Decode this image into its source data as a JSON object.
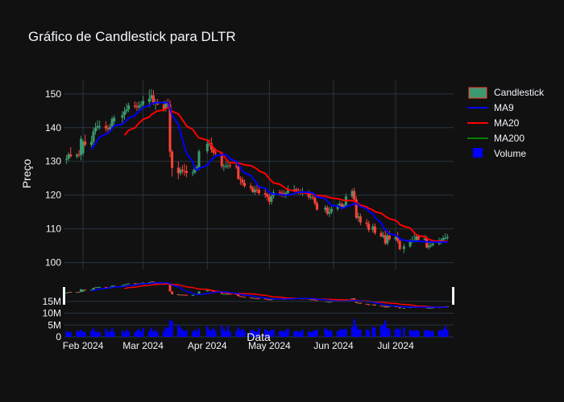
{
  "chart_data": {
    "type": "candlestick",
    "title": "Gráfico de Candlestick para DLTR",
    "xlabel": "Data",
    "ylabel": "Preço",
    "colors": {
      "background": "#111111",
      "grid": "#283442",
      "increasing": "#3d9970",
      "decreasing": "#ff4136",
      "ma9": "#0000ff",
      "ma20": "#ff0000",
      "ma200": "#008000",
      "volume": "#0000ff"
    },
    "legend": {
      "placement": "top-right",
      "entries": [
        "Candlestick",
        "MA9",
        "MA20",
        "MA200",
        "Volume"
      ]
    },
    "x_ticks": [
      {
        "date": "2024-02-01",
        "label": "Feb 2024"
      },
      {
        "date": "2024-03-01",
        "label": "Mar 2024"
      },
      {
        "date": "2024-04-01",
        "label": "Apr 2024"
      },
      {
        "date": "2024-05-01",
        "label": "May 2024"
      },
      {
        "date": "2024-06-01",
        "label": "Jun 2024"
      },
      {
        "date": "2024-07-01",
        "label": "Jul 2024"
      }
    ],
    "xlim": [
      "2024-01-23",
      "2024-07-29"
    ],
    "price_axis": {
      "ylim": [
        98,
        154
      ],
      "ticks": [
        100,
        110,
        120,
        130,
        140,
        150
      ]
    },
    "volume_axis": {
      "ylim": [
        0,
        18000000
      ],
      "ticks": [
        {
          "value": 0,
          "label": "0"
        },
        {
          "value": 5000000,
          "label": "5M"
        },
        {
          "value": 10000000,
          "label": "10M"
        },
        {
          "value": 15000000,
          "label": "15M"
        }
      ]
    },
    "series": {
      "dates": [
        "2024-01-24",
        "2024-01-25",
        "2024-01-26",
        "2024-01-29",
        "2024-01-30",
        "2024-01-31",
        "2024-02-01",
        "2024-02-02",
        "2024-02-05",
        "2024-02-06",
        "2024-02-07",
        "2024-02-08",
        "2024-02-09",
        "2024-02-12",
        "2024-02-13",
        "2024-02-14",
        "2024-02-15",
        "2024-02-16",
        "2024-02-20",
        "2024-02-21",
        "2024-02-22",
        "2024-02-23",
        "2024-02-26",
        "2024-02-27",
        "2024-02-28",
        "2024-02-29",
        "2024-03-01",
        "2024-03-04",
        "2024-03-05",
        "2024-03-06",
        "2024-03-07",
        "2024-03-08",
        "2024-03-11",
        "2024-03-12",
        "2024-03-13",
        "2024-03-14",
        "2024-03-15",
        "2024-03-18",
        "2024-03-19",
        "2024-03-20",
        "2024-03-21",
        "2024-03-22",
        "2024-03-25",
        "2024-03-26",
        "2024-03-27",
        "2024-03-28",
        "2024-04-01",
        "2024-04-02",
        "2024-04-03",
        "2024-04-04",
        "2024-04-05",
        "2024-04-08",
        "2024-04-09",
        "2024-04-10",
        "2024-04-11",
        "2024-04-12",
        "2024-04-15",
        "2024-04-16",
        "2024-04-17",
        "2024-04-18",
        "2024-04-19",
        "2024-04-22",
        "2024-04-23",
        "2024-04-24",
        "2024-04-25",
        "2024-04-26",
        "2024-04-29",
        "2024-04-30",
        "2024-05-01",
        "2024-05-02",
        "2024-05-03",
        "2024-05-06",
        "2024-05-07",
        "2024-05-08",
        "2024-05-09",
        "2024-05-10",
        "2024-05-13",
        "2024-05-14",
        "2024-05-15",
        "2024-05-16",
        "2024-05-17",
        "2024-05-20",
        "2024-05-21",
        "2024-05-22",
        "2024-05-23",
        "2024-05-24",
        "2024-05-28",
        "2024-05-29",
        "2024-05-30",
        "2024-05-31",
        "2024-06-03",
        "2024-06-04",
        "2024-06-05",
        "2024-06-06",
        "2024-06-07",
        "2024-06-10",
        "2024-06-11",
        "2024-06-12",
        "2024-06-13",
        "2024-06-14",
        "2024-06-17",
        "2024-06-18",
        "2024-06-20",
        "2024-06-21",
        "2024-06-24",
        "2024-06-25",
        "2024-06-26",
        "2024-06-27",
        "2024-06-28",
        "2024-07-01",
        "2024-07-02",
        "2024-07-03",
        "2024-07-05",
        "2024-07-08",
        "2024-07-09",
        "2024-07-10",
        "2024-07-11",
        "2024-07-12",
        "2024-07-15",
        "2024-07-16",
        "2024-07-17",
        "2024-07-18",
        "2024-07-19",
        "2024-07-22",
        "2024-07-23",
        "2024-07-24",
        "2024-07-25",
        "2024-07-26"
      ],
      "open": [
        130.5,
        130.8,
        132.1,
        131.5,
        132.0,
        131.9,
        132.4,
        135.9,
        134.9,
        135.8,
        138.9,
        139.9,
        140.5,
        140.5,
        139.8,
        139.5,
        140.2,
        141.8,
        142.9,
        143.7,
        144.8,
        145.4,
        146.6,
        146.3,
        146.0,
        146.5,
        146.8,
        147.6,
        148.6,
        149.6,
        147.2,
        147.4,
        146.8,
        145.5,
        147.3,
        146.8,
        132.9,
        128.1,
        126.5,
        127.5,
        127.2,
        127.1,
        126.6,
        126.7,
        128.2,
        128.3,
        133.0,
        135.2,
        135.4,
        133.5,
        132.6,
        132.4,
        128.6,
        128.6,
        128.6,
        128.8,
        128.6,
        128.5,
        124.8,
        124.6,
        123.6,
        122.7,
        122.2,
        120.9,
        121.6,
        121.5,
        120.6,
        120.2,
        119.5,
        118.0,
        119.7,
        120.8,
        120.7,
        120.1,
        120.0,
        120.7,
        121.6,
        121.7,
        121.2,
        121.0,
        120.9,
        120.9,
        119.4,
        119.4,
        119.2,
        117.6,
        115.7,
        116.3,
        114.5,
        115.0,
        115.9,
        116.9,
        117.4,
        116.5,
        117.0,
        119.6,
        121.2,
        118.7,
        113.3,
        113.7,
        111.9,
        111.5,
        109.7,
        110.7,
        108.8,
        107.7,
        108.1,
        105.7,
        108.0,
        106.9,
        107.6,
        106.4,
        104.0,
        104.8,
        106.2,
        106.6,
        106.6,
        107.8,
        106.8,
        107.1,
        104.5,
        105.0,
        105.2,
        105.6,
        106.0,
        106.7,
        107.3,
        107.3
      ],
      "high": [
        131.9,
        132.7,
        134.2,
        132.4,
        133.3,
        137.6,
        136.5,
        137.9,
        137.6,
        140.1,
        141.5,
        142.2,
        142.1,
        141.9,
        140.9,
        141.2,
        143.3,
        143.7,
        144.9,
        146.1,
        147.2,
        147.4,
        147.8,
        147.5,
        147.8,
        147.8,
        149.4,
        151.3,
        151.4,
        151.1,
        148.5,
        148.5,
        147.9,
        148.1,
        148.6,
        148.2,
        133.4,
        130.0,
        128.3,
        128.9,
        129.3,
        128.8,
        127.5,
        128.6,
        128.9,
        133.6,
        136.6,
        136.5,
        137.1,
        134.3,
        133.9,
        132.9,
        129.3,
        129.9,
        130.3,
        129.6,
        129.7,
        129.1,
        125.6,
        125.5,
        124.6,
        123.6,
        122.8,
        122.7,
        123.2,
        122.7,
        121.7,
        120.7,
        120.4,
        120.3,
        121.6,
        121.6,
        121.5,
        121.5,
        121.1,
        122.9,
        123.0,
        122.3,
        122.1,
        121.8,
        122.2,
        121.5,
        120.7,
        120.6,
        119.9,
        118.2,
        117.0,
        117.0,
        116.5,
        116.6,
        117.5,
        118.3,
        118.0,
        117.5,
        120.5,
        121.9,
        122.2,
        119.7,
        114.8,
        114.5,
        112.9,
        112.4,
        111.5,
        111.6,
        109.4,
        109.1,
        109.7,
        108.8,
        109.4,
        108.2,
        109.1,
        107.2,
        105.6,
        107.0,
        107.8,
        108.5,
        108.2,
        108.3,
        108.2,
        107.9,
        106.2,
        106.4,
        106.5,
        107.4,
        107.3,
        108.0,
        108.7,
        108.5
      ],
      "low": [
        129.2,
        130.1,
        131.1,
        130.8,
        131.2,
        130.3,
        131.5,
        134.4,
        134.2,
        134.9,
        137.9,
        139.2,
        139.4,
        138.9,
        138.3,
        138.8,
        139.3,
        140.9,
        141.4,
        142.3,
        144.1,
        144.6,
        145.6,
        145.0,
        144.6,
        145.1,
        145.6,
        146.0,
        147.7,
        146.7,
        145.3,
        146.7,
        144.7,
        144.8,
        145.7,
        131.3,
        125.5,
        124.7,
        125.8,
        126.3,
        125.7,
        125.3,
        125.6,
        126.2,
        127.5,
        127.4,
        132.4,
        134.4,
        132.6,
        131.8,
        131.5,
        127.9,
        127.1,
        127.9,
        127.8,
        127.9,
        127.8,
        124.6,
        123.0,
        122.8,
        122.2,
        121.5,
        120.6,
        120.1,
        120.6,
        120.0,
        119.2,
        118.4,
        117.1,
        117.2,
        118.9,
        119.8,
        119.5,
        119.3,
        119.1,
        120.2,
        120.9,
        120.5,
        120.3,
        120.1,
        119.7,
        118.7,
        118.6,
        118.6,
        117.0,
        115.4,
        114.9,
        114.0,
        113.5,
        114.3,
        115.3,
        116.7,
        115.8,
        116.1,
        116.4,
        119.0,
        118.5,
        112.8,
        112.1,
        111.1,
        110.5,
        109.0,
        108.9,
        108.2,
        107.5,
        107.2,
        105.2,
        105.1,
        106.5,
        106.4,
        105.7,
        103.6,
        102.8,
        104.4,
        105.7,
        106.0,
        106.0,
        106.2,
        106.6,
        104.2,
        103.9,
        104.4,
        104.7,
        105.1,
        105.4,
        106.4,
        106.8,
        106.7
      ],
      "close": [
        130.8,
        132.1,
        131.5,
        132.0,
        131.9,
        136.7,
        135.9,
        134.9,
        135.8,
        138.9,
        139.9,
        140.5,
        140.5,
        139.8,
        139.5,
        140.2,
        142.6,
        142.9,
        143.7,
        144.8,
        145.4,
        146.6,
        146.3,
        146.0,
        146.5,
        146.8,
        147.9,
        148.6,
        149.6,
        147.2,
        147.4,
        146.8,
        145.5,
        147.3,
        146.8,
        132.9,
        128.1,
        126.5,
        127.5,
        127.2,
        127.1,
        126.6,
        126.7,
        128.2,
        128.3,
        133.0,
        135.2,
        135.4,
        133.5,
        132.6,
        132.4,
        128.6,
        128.6,
        128.6,
        128.8,
        128.6,
        128.5,
        124.8,
        124.6,
        123.6,
        122.7,
        122.2,
        120.9,
        121.6,
        121.5,
        120.6,
        120.2,
        119.5,
        118.0,
        119.7,
        120.8,
        120.7,
        120.1,
        120.0,
        120.7,
        121.6,
        121.7,
        121.2,
        121.0,
        120.9,
        120.9,
        119.4,
        119.4,
        119.2,
        117.6,
        115.7,
        116.3,
        114.5,
        115.0,
        115.9,
        116.9,
        117.4,
        116.5,
        117.0,
        119.6,
        121.2,
        118.7,
        113.3,
        113.7,
        111.9,
        111.5,
        109.7,
        110.7,
        108.8,
        107.7,
        108.1,
        105.7,
        108.0,
        106.9,
        107.6,
        106.4,
        104.0,
        104.8,
        106.2,
        106.6,
        106.6,
        107.8,
        106.8,
        107.1,
        104.5,
        105.0,
        105.2,
        105.6,
        106.0,
        106.7,
        107.3,
        107.3,
        107.6
      ],
      "volume": [
        2400000,
        2100000,
        1900000,
        2600000,
        2300000,
        3100000,
        2200000,
        2000000,
        2500000,
        3600000,
        2400000,
        2100000,
        1800000,
        3400000,
        2000000,
        2300000,
        3700000,
        2100000,
        2600000,
        1900000,
        3100000,
        2400000,
        2000000,
        2800000,
        3300000,
        2200000,
        3700000,
        2500000,
        3900000,
        2300000,
        3100000,
        2000000,
        2600000,
        4100000,
        3800000,
        7300000,
        6600000,
        5200000,
        4000000,
        3100000,
        2400000,
        2900000,
        2200000,
        3000000,
        2500000,
        3600000,
        4400000,
        3100000,
        2800000,
        3900000,
        2700000,
        4800000,
        3300000,
        2400000,
        4600000,
        2200000,
        2500000,
        4000000,
        2900000,
        3400000,
        2500000,
        2800000,
        3000000,
        2400000,
        2100000,
        3600000,
        3300000,
        2700000,
        2400000,
        2900000,
        3100000,
        2500000,
        2600000,
        2300000,
        2800000,
        3500000,
        2400000,
        2600000,
        2200000,
        2300000,
        3000000,
        2300000,
        2100000,
        2400000,
        2700000,
        3100000,
        3700000,
        3000000,
        2500000,
        2700000,
        2400000,
        2900000,
        3300000,
        3100000,
        3500000,
        4200000,
        7500000,
        4600000,
        3100000,
        3300000,
        3100000,
        2900000,
        4300000,
        3900000,
        4700000,
        5200000,
        6800000,
        3700000,
        3300000,
        3100000,
        3600000,
        3200000,
        4100000,
        3000000,
        2700000,
        2600000,
        2900000,
        2600000,
        2700000,
        3000000,
        2700000,
        2400000,
        2500000,
        2800000,
        2900000,
        3100000,
        4500000,
        3000000
      ]
    }
  }
}
